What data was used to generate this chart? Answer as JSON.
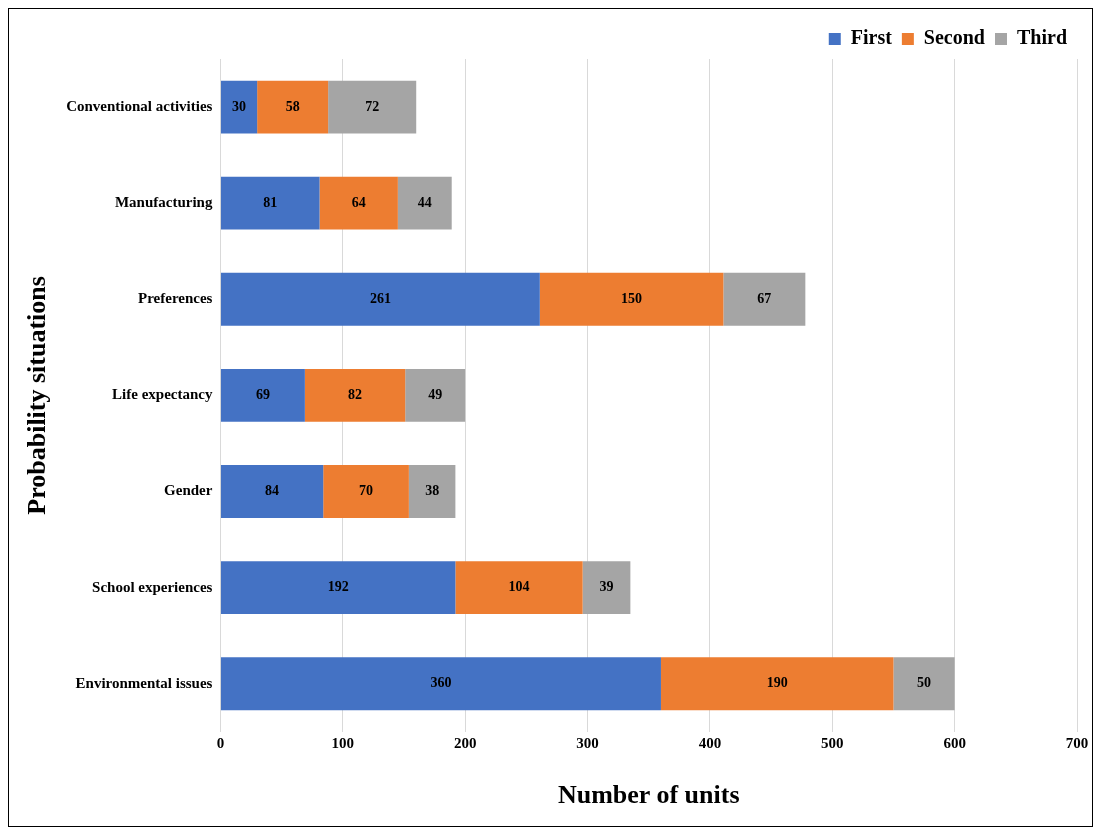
{
  "chart_data": {
    "type": "bar",
    "orientation": "horizontal",
    "stacked": true,
    "xlabel": "Number of units",
    "ylabel": "Probability situations",
    "categories": [
      "Conventional activities",
      "Manufacturing",
      "Preferences",
      "Life expectancy",
      "Gender",
      "School experiences",
      "Environmental issues"
    ],
    "series": [
      {
        "name": "First",
        "color": "#4472c4",
        "values": [
          30,
          81,
          261,
          69,
          84,
          192,
          360
        ]
      },
      {
        "name": "Second",
        "color": "#ed7d31",
        "values": [
          58,
          64,
          150,
          82,
          70,
          104,
          190
        ]
      },
      {
        "name": "Third",
        "color": "#a5a5a5",
        "values": [
          72,
          44,
          67,
          49,
          38,
          39,
          50
        ]
      }
    ],
    "xlim": [
      0,
      700
    ],
    "xticks": [
      0,
      100,
      200,
      300,
      400,
      500,
      600,
      700
    ],
    "grid": "x",
    "legend": "top right",
    "data_labels": true
  }
}
